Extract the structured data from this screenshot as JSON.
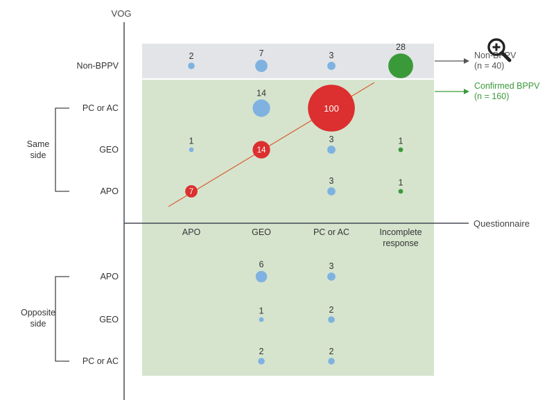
{
  "chart_data": {
    "type": "scatter",
    "y_axis_title": "VOG",
    "x_axis_title": "Questionnaire",
    "x_categories": [
      "APO",
      "GEO",
      "PC or AC",
      "Incomplete response"
    ],
    "y_rows": [
      {
        "key": "nonbppv",
        "label": "Non-BPPV"
      },
      {
        "key": "s_pc",
        "label": "PC or AC"
      },
      {
        "key": "s_geo",
        "label": "GEO"
      },
      {
        "key": "s_apo",
        "label": "APO"
      },
      {
        "key": "o_apo",
        "label": "APO"
      },
      {
        "key": "o_geo",
        "label": "GEO"
      },
      {
        "key": "o_pc",
        "label": "PC or AC"
      }
    ],
    "groups": [
      {
        "key": "same",
        "label_lines": [
          "Same",
          "side"
        ]
      },
      {
        "key": "opposite",
        "label_lines": [
          "Opposite",
          "side"
        ]
      }
    ],
    "annotations": [
      {
        "key": "nonbppv",
        "lines": [
          "Non-BPPV",
          "(n = 40)"
        ],
        "color": "#555555"
      },
      {
        "key": "confirmed",
        "lines": [
          "Confirmed BPPV",
          "(n = 160)"
        ],
        "color": "#3a9a3a"
      }
    ],
    "points": [
      {
        "x": "APO",
        "y": "nonbppv",
        "value": 2,
        "color": "blue"
      },
      {
        "x": "GEO",
        "y": "nonbppv",
        "value": 7,
        "color": "blue"
      },
      {
        "x": "PC or AC",
        "y": "nonbppv",
        "value": 3,
        "color": "blue"
      },
      {
        "x": "Incomplete response",
        "y": "nonbppv",
        "value": 28,
        "color": "green"
      },
      {
        "x": "GEO",
        "y": "s_pc",
        "value": 14,
        "color": "blue"
      },
      {
        "x": "PC or AC",
        "y": "s_pc",
        "value": 100,
        "color": "red"
      },
      {
        "x": "APO",
        "y": "s_geo",
        "value": 1,
        "color": "blue"
      },
      {
        "x": "GEO",
        "y": "s_geo",
        "value": 14,
        "color": "red"
      },
      {
        "x": "PC or AC",
        "y": "s_geo",
        "value": 3,
        "color": "blue"
      },
      {
        "x": "Incomplete response",
        "y": "s_geo",
        "value": 1,
        "color": "green"
      },
      {
        "x": "APO",
        "y": "s_apo",
        "value": 7,
        "color": "red"
      },
      {
        "x": "PC or AC",
        "y": "s_apo",
        "value": 3,
        "color": "blue"
      },
      {
        "x": "Incomplete response",
        "y": "s_apo",
        "value": 1,
        "color": "green"
      },
      {
        "x": "GEO",
        "y": "o_apo",
        "value": 6,
        "color": "blue"
      },
      {
        "x": "PC or AC",
        "y": "o_apo",
        "value": 3,
        "color": "blue"
      },
      {
        "x": "GEO",
        "y": "o_geo",
        "value": 1,
        "color": "blue"
      },
      {
        "x": "PC or AC",
        "y": "o_geo",
        "value": 2,
        "color": "blue"
      },
      {
        "x": "GEO",
        "y": "o_pc",
        "value": 2,
        "color": "blue"
      },
      {
        "x": "PC or AC",
        "y": "o_pc",
        "value": 2,
        "color": "blue"
      }
    ],
    "colors": {
      "blue": "#7fb2e0",
      "red": "#dc2f2f",
      "green": "#3a9a3a",
      "grey_band": "#e2e4e7",
      "green_band": "#d6e4ce",
      "trend_line": "#d9653c",
      "axis": "#444a52"
    },
    "legend": null,
    "grid": false
  },
  "ui": {
    "zoom_icon": "zoom-in-icon"
  }
}
